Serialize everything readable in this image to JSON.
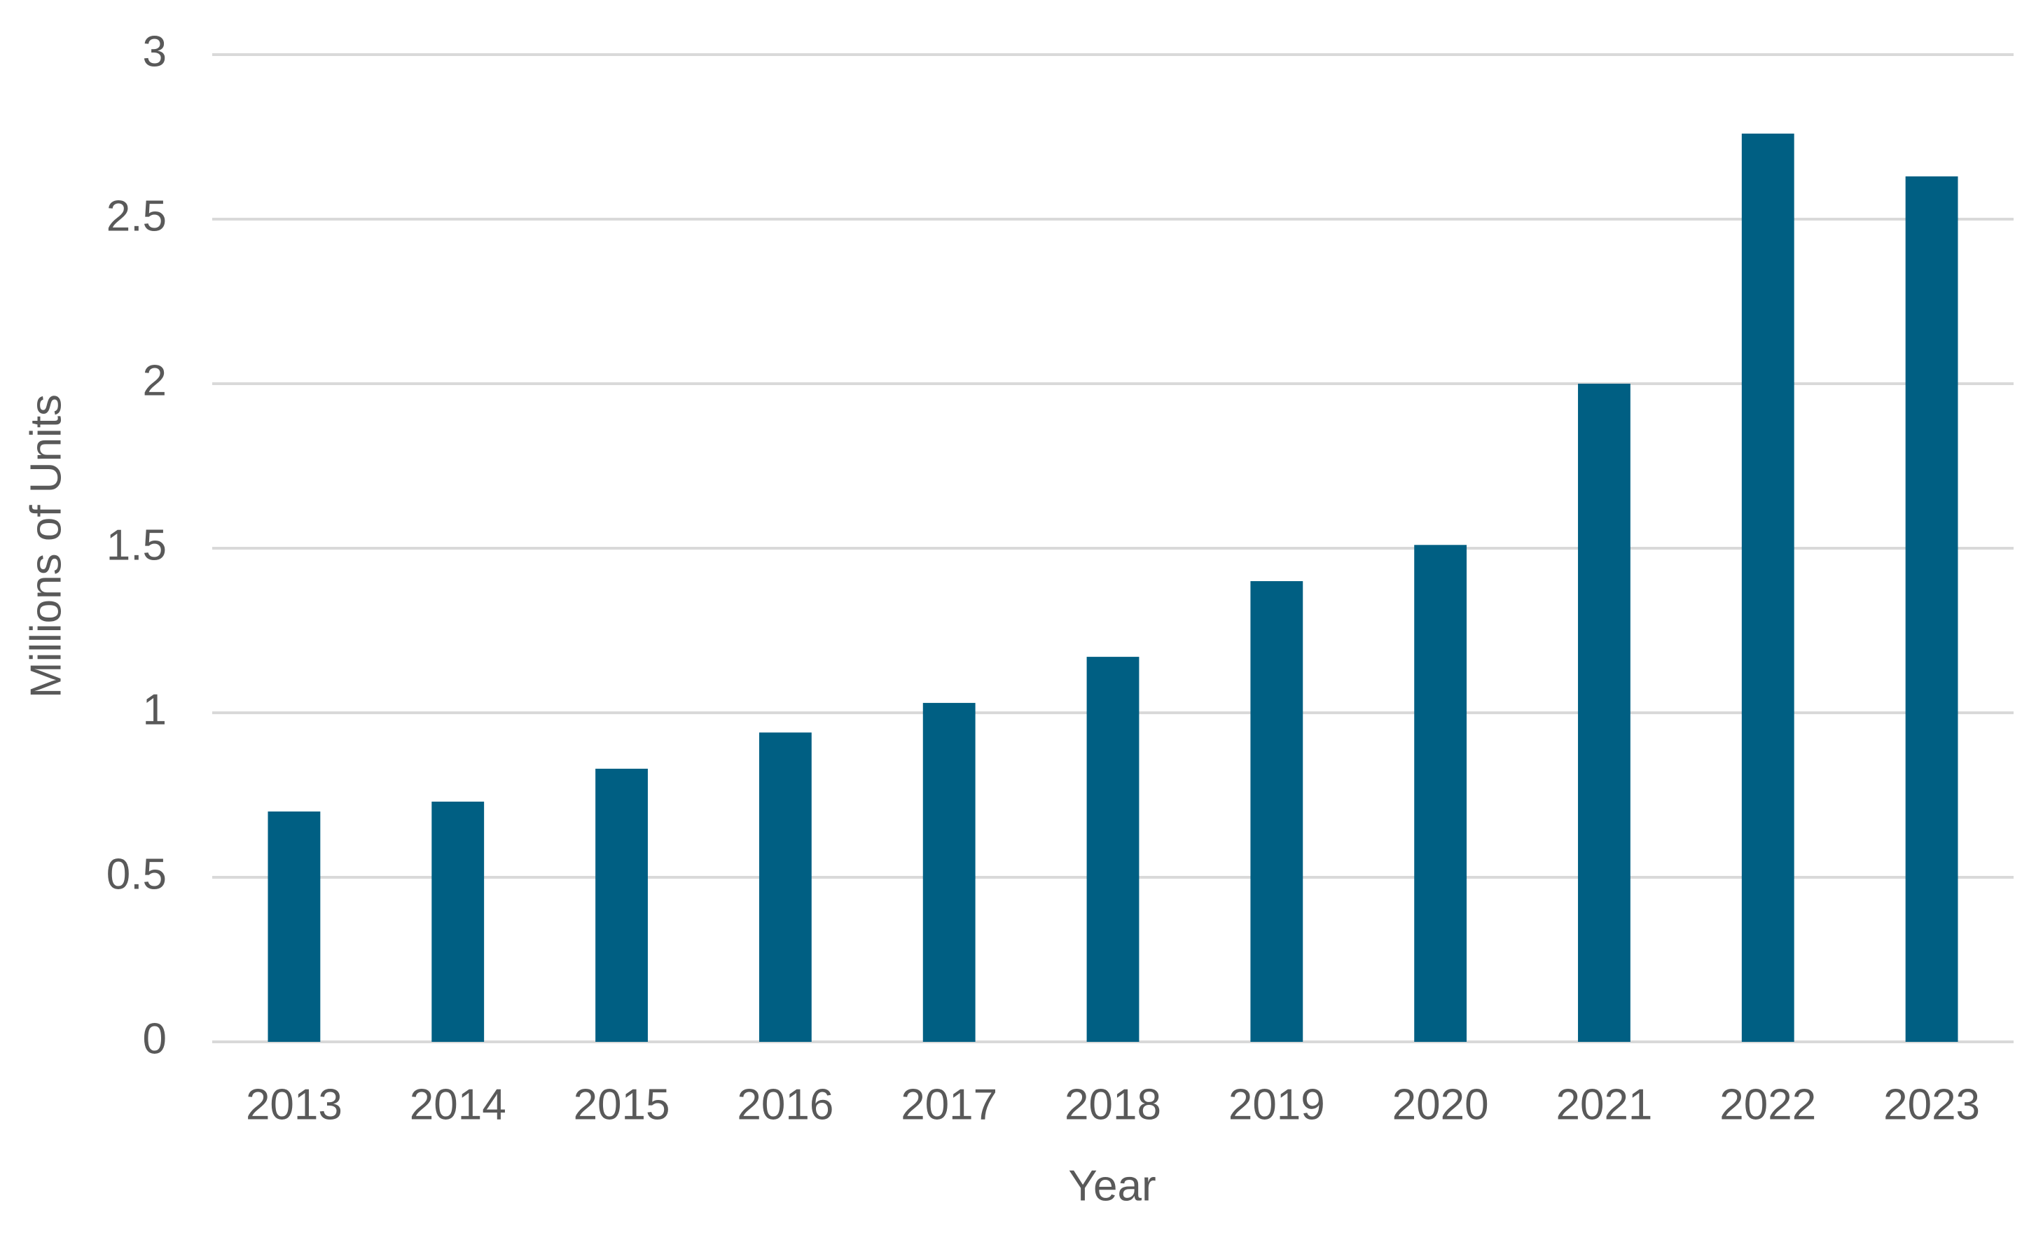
{
  "chart_data": {
    "type": "bar",
    "x_label": "Year",
    "y_label": "Millions of Units",
    "categories": [
      "2013",
      "2014",
      "2015",
      "2016",
      "2017",
      "2018",
      "2019",
      "2020",
      "2021",
      "2022",
      "2023"
    ],
    "values": [
      0.7,
      0.73,
      0.83,
      0.94,
      1.03,
      1.17,
      1.4,
      1.51,
      2.0,
      2.76,
      2.63
    ],
    "color": "#005f83",
    "ylim": [
      0,
      3
    ],
    "yticks": [
      0,
      0.5,
      1,
      1.5,
      2,
      2.5,
      3
    ],
    "grid": true
  }
}
